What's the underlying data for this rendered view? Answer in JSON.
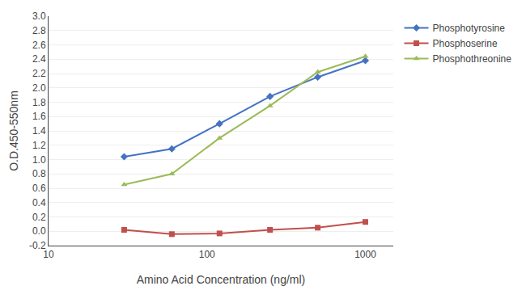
{
  "chart_data": {
    "type": "line",
    "x_label": "Amino Acid Concentration (ng/ml)",
    "y_label": "O.D.450-550nm",
    "x": [
      30,
      60,
      120,
      250,
      500,
      1000
    ],
    "series": [
      {
        "name": "Phosphotyrosine",
        "color": "#4472C4",
        "marker": "diamond",
        "values": [
          1.04,
          1.15,
          1.5,
          1.88,
          2.15,
          2.38
        ]
      },
      {
        "name": "Phosphoserine",
        "color": "#C0504D",
        "marker": "square",
        "values": [
          0.02,
          -0.04,
          -0.03,
          0.02,
          0.05,
          0.13
        ]
      },
      {
        "name": "Phosphothreonine",
        "color": "#9BBB59",
        "marker": "triangle-up",
        "values": [
          0.65,
          0.8,
          1.3,
          1.75,
          2.22,
          2.44
        ]
      }
    ],
    "log": "x",
    "xlim": [
      10,
      1500
    ],
    "xticks": [
      10,
      100,
      1000
    ],
    "ylim": [
      -0.2,
      3.0
    ],
    "yticks": [
      -0.2,
      {
        "value": 0.0,
        "label": "0.0"
      },
      0.2,
      0.4,
      0.6,
      0.8,
      {
        "value": 1.0,
        "label": "1.0"
      },
      1.2,
      1.4,
      1.6,
      1.8,
      {
        "value": 2.0,
        "label": "2.0"
      },
      2.2,
      2.4,
      2.6,
      2.8,
      {
        "value": 3.0,
        "label": "3.0"
      }
    ],
    "grid": "y",
    "legend": "right"
  }
}
